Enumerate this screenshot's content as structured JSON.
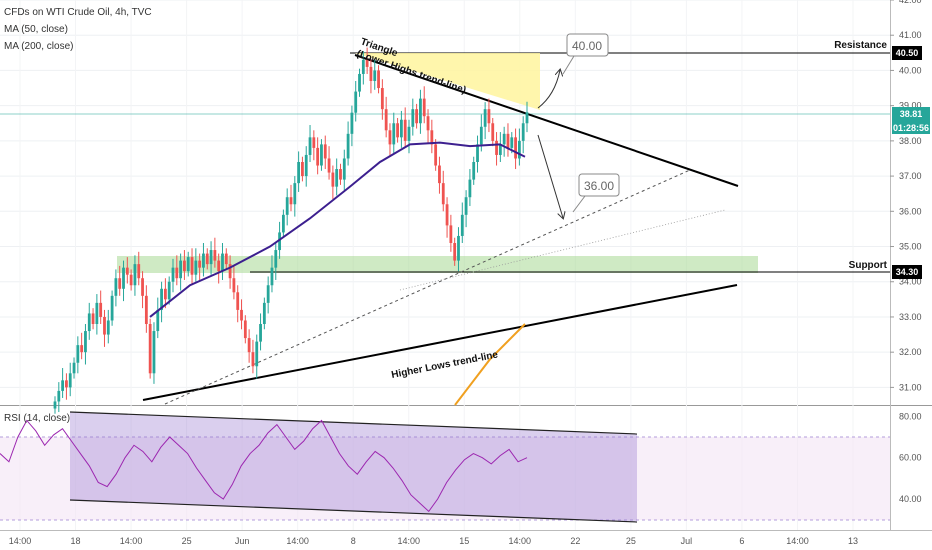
{
  "header": {
    "symbol_line": "CFDs on WTI Crude Oil, 4h, TVC",
    "ma50_label": "MA (50, close)",
    "ma200_label": "MA (200, close)",
    "rsi_label": "RSI (14, close)"
  },
  "colors": {
    "up": "#26a69a",
    "down": "#ef5350",
    "ma50": "#3c1f8f",
    "ma200": "#f0a020",
    "rsi_line": "#9c27b0",
    "zone": "#9fd68a",
    "triangle_fill": "#fff59d",
    "rsi_band": "#9575cd"
  },
  "price_axis": {
    "min": 30.5,
    "max": 42.0,
    "ticks": [
      "31.00",
      "32.00",
      "33.00",
      "34.00",
      "35.00",
      "36.00",
      "37.00",
      "38.00",
      "39.00",
      "40.00",
      "41.00",
      "42.00"
    ]
  },
  "rsi_axis": {
    "min": 25,
    "max": 85,
    "ticks": [
      "40.00",
      "60.00",
      "80.00"
    ]
  },
  "time_axis": {
    "labels": [
      "14:00",
      "18",
      "14:00",
      "25",
      "Jun",
      "14:00",
      "8",
      "14:00",
      "15",
      "14:00",
      "22",
      "25",
      "Jul",
      "6",
      "14:00",
      "13"
    ]
  },
  "price_tags": {
    "resistance": "40.50",
    "current": "38.81",
    "countdown": "01:28:56",
    "support": "34.30"
  },
  "annotations": {
    "triangle": "Triangle",
    "lower_highs": "(Lower Highs trend-line)",
    "resistance": "Resistance",
    "support": "Support",
    "higher_lows": "Higher Lows trend-line",
    "target_up": "40.00",
    "target_down": "36.00"
  },
  "chart_data": {
    "type": "candlestick",
    "title": "CFDs on WTI Crude Oil, 4h, TVC",
    "ylim": [
      30.5,
      42.0
    ],
    "levels": {
      "resistance": 40.5,
      "support": 34.3,
      "current": 38.81
    },
    "closes": [
      30.6,
      30.9,
      31.2,
      31.0,
      31.4,
      31.7,
      32.2,
      32.0,
      32.6,
      33.1,
      32.8,
      33.4,
      33.0,
      32.5,
      32.9,
      33.6,
      34.1,
      33.8,
      34.4,
      34.2,
      33.9,
      34.5,
      34.1,
      33.6,
      32.8,
      31.4,
      32.6,
      33.2,
      33.8,
      33.5,
      34.0,
      34.4,
      34.1,
      34.6,
      34.3,
      34.7,
      34.2,
      34.6,
      34.4,
      34.8,
      34.5,
      34.9,
      34.6,
      34.3,
      34.8,
      34.5,
      34.1,
      33.7,
      33.2,
      32.9,
      32.4,
      32.0,
      31.6,
      32.3,
      32.8,
      33.4,
      33.9,
      34.4,
      34.9,
      35.4,
      35.9,
      36.4,
      36.2,
      36.8,
      37.4,
      37.0,
      37.6,
      38.1,
      37.8,
      37.3,
      37.9,
      37.5,
      37.1,
      36.7,
      37.2,
      36.9,
      37.5,
      38.2,
      38.8,
      39.4,
      39.9,
      40.3,
      40.1,
      39.7,
      40.0,
      39.5,
      38.9,
      38.3,
      37.9,
      38.5,
      38.1,
      38.6,
      38.0,
      38.4,
      38.9,
      38.5,
      39.2,
      38.7,
      38.3,
      37.9,
      37.3,
      36.8,
      36.2,
      35.6,
      35.1,
      34.6,
      35.3,
      35.9,
      36.4,
      36.9,
      37.4,
      37.9,
      38.4,
      38.9,
      38.5,
      38.0,
      37.6,
      37.9,
      38.2,
      37.8,
      38.1,
      37.5,
      38.0,
      38.5,
      38.81
    ],
    "ma50": [
      [
        150,
        33.0
      ],
      [
        190,
        33.9
      ],
      [
        230,
        34.4
      ],
      [
        270,
        35.0
      ],
      [
        310,
        35.8
      ],
      [
        350,
        36.7
      ],
      [
        380,
        37.4
      ],
      [
        410,
        37.9
      ],
      [
        440,
        37.95
      ],
      [
        470,
        37.85
      ],
      [
        500,
        37.9
      ],
      [
        525,
        37.55
      ]
    ],
    "ma200": [
      [
        455,
        30.5
      ],
      [
        490,
        31.8
      ],
      [
        525,
        32.8
      ]
    ],
    "rsi": [
      62,
      58,
      70,
      78,
      73,
      66,
      71,
      74,
      68,
      62,
      56,
      48,
      46,
      52,
      60,
      66,
      63,
      58,
      65,
      70,
      66,
      62,
      55,
      49,
      43,
      40,
      47,
      56,
      62,
      66,
      72,
      76,
      70,
      64,
      68,
      74,
      78,
      70,
      62,
      56,
      52,
      58,
      63,
      60,
      55,
      49,
      42,
      38,
      34,
      40,
      48,
      54,
      59,
      62,
      60,
      57,
      61,
      64,
      58,
      60
    ],
    "rsi_channel": {
      "upper": [
        [
          70,
          82
        ],
        [
          637,
          72
        ]
      ],
      "lower": [
        [
          70,
          40
        ],
        [
          637,
          28
        ]
      ]
    },
    "x_labels": [
      "14:00",
      "18",
      "14:00",
      "25",
      "Jun",
      "14:00",
      "8",
      "14:00",
      "15",
      "14:00",
      "22",
      "25",
      "Jul",
      "6",
      "14:00",
      "13"
    ]
  }
}
